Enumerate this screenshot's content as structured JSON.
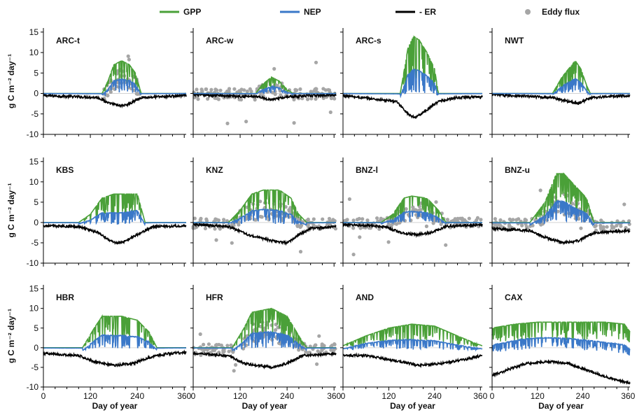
{
  "chart_data": {
    "type": "line",
    "legend": {
      "placement": "top",
      "entries": [
        {
          "label": "GPP",
          "color": "#4aa038",
          "kind": "line"
        },
        {
          "label": "NEP",
          "color": "#3a78c8",
          "kind": "line"
        },
        {
          "label": "- ER",
          "color": "#000000",
          "kind": "line"
        },
        {
          "label": "Eddy flux",
          "color": "#a6a6a6",
          "kind": "point"
        }
      ]
    },
    "xlabel": "Day of year",
    "ylabel": "g C m⁻² day⁻¹",
    "xlim": [
      0,
      365
    ],
    "ylim": [
      -10,
      16
    ],
    "xticks": [
      "0",
      "120",
      "240",
      "360"
    ],
    "yticks": [
      "-10",
      "-5",
      "0",
      "5",
      "10",
      "15"
    ],
    "panels": [
      {
        "name": "ARC-t",
        "gpp": [
          [
            0,
            0
          ],
          [
            150,
            0
          ],
          [
            165,
            3
          ],
          [
            180,
            7
          ],
          [
            200,
            8
          ],
          [
            220,
            7
          ],
          [
            235,
            5
          ],
          [
            250,
            0
          ],
          [
            365,
            0
          ]
        ],
        "er": [
          [
            0,
            -0.5
          ],
          [
            140,
            -1
          ],
          [
            170,
            -2.5
          ],
          [
            200,
            -3
          ],
          [
            220,
            -2.5
          ],
          [
            250,
            -1
          ],
          [
            365,
            -0.5
          ]
        ],
        "flux": true,
        "fluxRange": [
          150,
          250
        ]
      },
      {
        "name": "ARC-w",
        "gpp": [
          [
            0,
            0
          ],
          [
            160,
            0
          ],
          [
            175,
            2
          ],
          [
            200,
            4
          ],
          [
            220,
            3
          ],
          [
            240,
            1
          ],
          [
            255,
            0
          ],
          [
            365,
            0
          ]
        ],
        "er": [
          [
            0,
            -0.3
          ],
          [
            160,
            -0.8
          ],
          [
            200,
            -1.5
          ],
          [
            240,
            -0.8
          ],
          [
            365,
            -0.3
          ]
        ],
        "flux": true,
        "fluxRange": [
          0,
          365
        ]
      },
      {
        "name": "ARC-s",
        "gpp": [
          [
            0,
            0
          ],
          [
            150,
            0
          ],
          [
            170,
            11
          ],
          [
            185,
            14
          ],
          [
            200,
            13
          ],
          [
            220,
            10
          ],
          [
            240,
            6
          ],
          [
            250,
            0
          ],
          [
            365,
            0
          ]
        ],
        "er": [
          [
            0,
            -0.5
          ],
          [
            140,
            -2
          ],
          [
            170,
            -5
          ],
          [
            190,
            -6
          ],
          [
            220,
            -4
          ],
          [
            250,
            -2
          ],
          [
            300,
            -1
          ],
          [
            365,
            -0.8
          ]
        ],
        "flux": false
      },
      {
        "name": "NWT",
        "gpp": [
          [
            0,
            0
          ],
          [
            160,
            0
          ],
          [
            185,
            4
          ],
          [
            220,
            8
          ],
          [
            235,
            6
          ],
          [
            250,
            2
          ],
          [
            260,
            0
          ],
          [
            365,
            0
          ]
        ],
        "er": [
          [
            0,
            -0.3
          ],
          [
            160,
            -1
          ],
          [
            200,
            -2
          ],
          [
            230,
            -2.5
          ],
          [
            260,
            -1
          ],
          [
            365,
            -0.5
          ]
        ],
        "flux": false
      },
      {
        "name": "KBS",
        "gpp": [
          [
            0,
            0
          ],
          [
            90,
            0
          ],
          [
            120,
            2
          ],
          [
            150,
            6
          ],
          [
            180,
            7
          ],
          [
            200,
            7
          ],
          [
            220,
            7
          ],
          [
            240,
            7
          ],
          [
            260,
            0
          ],
          [
            365,
            0
          ]
        ],
        "er": [
          [
            0,
            -0.8
          ],
          [
            90,
            -1
          ],
          [
            140,
            -2.5
          ],
          [
            180,
            -5
          ],
          [
            200,
            -5
          ],
          [
            240,
            -3
          ],
          [
            280,
            -1
          ],
          [
            365,
            -0.8
          ]
        ],
        "flux": false
      },
      {
        "name": "KNZ",
        "gpp": [
          [
            0,
            0
          ],
          [
            90,
            0
          ],
          [
            120,
            3
          ],
          [
            150,
            7
          ],
          [
            180,
            8
          ],
          [
            220,
            8
          ],
          [
            250,
            6
          ],
          [
            270,
            2
          ],
          [
            290,
            0
          ],
          [
            365,
            0
          ]
        ],
        "er": [
          [
            0,
            -0.5
          ],
          [
            90,
            -1
          ],
          [
            140,
            -3
          ],
          [
            200,
            -4.5
          ],
          [
            240,
            -5
          ],
          [
            270,
            -3
          ],
          [
            300,
            -1.5
          ],
          [
            365,
            -1
          ]
        ],
        "flux": true,
        "fluxRange": [
          0,
          365
        ]
      },
      {
        "name": "BNZ-l",
        "gpp": [
          [
            0,
            0
          ],
          [
            100,
            0
          ],
          [
            130,
            2
          ],
          [
            160,
            6
          ],
          [
            180,
            6.5
          ],
          [
            220,
            6
          ],
          [
            250,
            3
          ],
          [
            270,
            0
          ],
          [
            365,
            0
          ]
        ],
        "er": [
          [
            0,
            -0.5
          ],
          [
            110,
            -1
          ],
          [
            150,
            -2.5
          ],
          [
            190,
            -3
          ],
          [
            230,
            -2.5
          ],
          [
            270,
            -1
          ],
          [
            365,
            -0.5
          ]
        ],
        "flux": true,
        "fluxRange": [
          0,
          365
        ]
      },
      {
        "name": "BNZ-u",
        "gpp": [
          [
            0,
            0
          ],
          [
            100,
            0
          ],
          [
            140,
            5
          ],
          [
            170,
            12
          ],
          [
            190,
            12
          ],
          [
            220,
            9
          ],
          [
            250,
            6
          ],
          [
            270,
            0
          ],
          [
            365,
            0
          ]
        ],
        "er": [
          [
            0,
            -1.5
          ],
          [
            100,
            -2
          ],
          [
            150,
            -4
          ],
          [
            190,
            -5
          ],
          [
            230,
            -4.5
          ],
          [
            270,
            -2.5
          ],
          [
            365,
            -2
          ]
        ],
        "flux": true,
        "fluxRange": [
          0,
          365
        ]
      },
      {
        "name": "HBR",
        "gpp": [
          [
            0,
            0
          ],
          [
            100,
            0
          ],
          [
            130,
            5
          ],
          [
            150,
            8
          ],
          [
            200,
            8
          ],
          [
            240,
            7
          ],
          [
            270,
            4
          ],
          [
            290,
            0
          ],
          [
            365,
            0
          ]
        ],
        "er": [
          [
            0,
            -1.5
          ],
          [
            90,
            -2
          ],
          [
            130,
            -3.5
          ],
          [
            180,
            -4.5
          ],
          [
            230,
            -4
          ],
          [
            270,
            -2.5
          ],
          [
            320,
            -1.5
          ],
          [
            365,
            -1.2
          ]
        ],
        "flux": false
      },
      {
        "name": "HFR",
        "gpp": [
          [
            0,
            0
          ],
          [
            100,
            0
          ],
          [
            130,
            5
          ],
          [
            150,
            9
          ],
          [
            200,
            10
          ],
          [
            240,
            8
          ],
          [
            270,
            3
          ],
          [
            290,
            0
          ],
          [
            365,
            0
          ]
        ],
        "er": [
          [
            0,
            -1.5
          ],
          [
            90,
            -2
          ],
          [
            130,
            -4
          ],
          [
            200,
            -5
          ],
          [
            240,
            -4
          ],
          [
            280,
            -2
          ],
          [
            365,
            -1.5
          ]
        ],
        "flux": true,
        "fluxRange": [
          0,
          365
        ]
      },
      {
        "name": "AND",
        "gpp": [
          [
            0,
            0.5
          ],
          [
            60,
            3
          ],
          [
            120,
            5
          ],
          [
            180,
            6
          ],
          [
            240,
            5.5
          ],
          [
            300,
            3
          ],
          [
            350,
            1
          ],
          [
            365,
            0.5
          ]
        ],
        "er": [
          [
            0,
            -2
          ],
          [
            60,
            -2
          ],
          [
            120,
            -3
          ],
          [
            200,
            -4.5
          ],
          [
            260,
            -4
          ],
          [
            320,
            -3
          ],
          [
            365,
            -2
          ]
        ],
        "flux": false
      },
      {
        "name": "CAX",
        "gpp": [
          [
            0,
            5
          ],
          [
            60,
            6
          ],
          [
            120,
            6.5
          ],
          [
            180,
            6.5
          ],
          [
            240,
            6.5
          ],
          [
            300,
            6.5
          ],
          [
            350,
            6
          ],
          [
            365,
            4
          ]
        ],
        "er": [
          [
            0,
            -7
          ],
          [
            30,
            -6
          ],
          [
            90,
            -4
          ],
          [
            150,
            -3.5
          ],
          [
            200,
            -4
          ],
          [
            260,
            -6
          ],
          [
            320,
            -8
          ],
          [
            365,
            -9
          ]
        ],
        "flux": false
      }
    ]
  }
}
